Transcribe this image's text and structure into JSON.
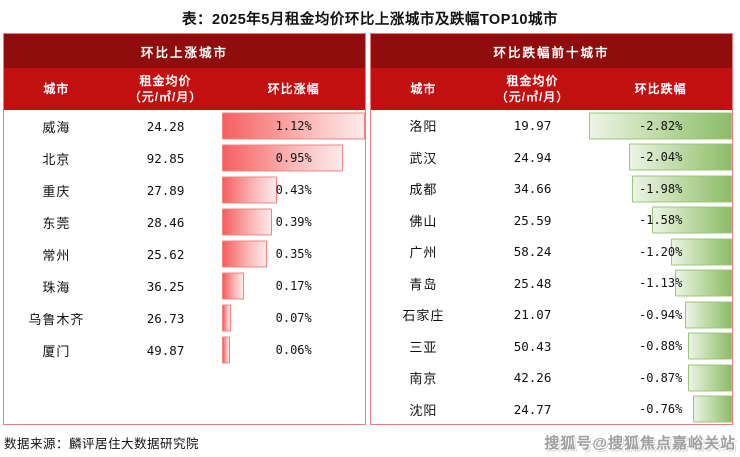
{
  "title": "表：2025年5月租金均价环比上涨城市及跌幅TOP10城市",
  "left_table": {
    "panel_title": "环比上涨城市",
    "columns": {
      "city": "城市",
      "price_line1": "租金均价",
      "price_line2": "（元/㎡/月）",
      "change": "环比涨幅"
    },
    "max_abs_value": 1.12,
    "rows": [
      {
        "city": "威海",
        "price": "24.28",
        "change": "1.12%",
        "value": 1.12
      },
      {
        "city": "北京",
        "price": "92.85",
        "change": "0.95%",
        "value": 0.95
      },
      {
        "city": "重庆",
        "price": "27.89",
        "change": "0.43%",
        "value": 0.43
      },
      {
        "city": "东莞",
        "price": "28.46",
        "change": "0.39%",
        "value": 0.39
      },
      {
        "city": "常州",
        "price": "25.62",
        "change": "0.35%",
        "value": 0.35
      },
      {
        "city": "珠海",
        "price": "36.25",
        "change": "0.17%",
        "value": 0.17
      },
      {
        "city": "乌鲁木齐",
        "price": "26.73",
        "change": "0.07%",
        "value": 0.07
      },
      {
        "city": "厦门",
        "price": "49.87",
        "change": "0.06%",
        "value": 0.06
      }
    ]
  },
  "right_table": {
    "panel_title": "环比跌幅前十城市",
    "columns": {
      "city": "城市",
      "price_line1": "租金均价",
      "price_line2": "（元/㎡/月）",
      "change": "环比跌幅"
    },
    "max_abs_value": 2.82,
    "rows": [
      {
        "city": "洛阳",
        "price": "19.97",
        "change": "-2.82%",
        "value": -2.82
      },
      {
        "city": "武汉",
        "price": "24.94",
        "change": "-2.04%",
        "value": -2.04
      },
      {
        "city": "成都",
        "price": "34.66",
        "change": "-1.98%",
        "value": -1.98
      },
      {
        "city": "佛山",
        "price": "25.59",
        "change": "-1.58%",
        "value": -1.58
      },
      {
        "city": "广州",
        "price": "58.24",
        "change": "-1.20%",
        "value": -1.2
      },
      {
        "city": "青岛",
        "price": "25.48",
        "change": "-1.13%",
        "value": -1.13
      },
      {
        "city": "石家庄",
        "price": "21.07",
        "change": "-0.94%",
        "value": -0.94
      },
      {
        "city": "三亚",
        "price": "50.43",
        "change": "-0.88%",
        "value": -0.88
      },
      {
        "city": "南京",
        "price": "42.26",
        "change": "-0.87%",
        "value": -0.87
      },
      {
        "city": "沈阳",
        "price": "24.77",
        "change": "-0.76%",
        "value": -0.76
      }
    ]
  },
  "footer": {
    "source": "数据来源：麟评居住大数据研究院",
    "watermark": "搜狐号@搜狐焦点嘉峪关站"
  },
  "colors": {
    "panel_header_bg": "#8f0d0d",
    "column_header_bg": "#c21010",
    "panel_border": "#e87d7d",
    "rise_bar_start": "#f55f5f",
    "rise_bar_end": "#fdeaea",
    "rise_bar_border": "#f08484",
    "fall_bar_start": "#ecf4e5",
    "fall_bar_end": "#8cbc68",
    "fall_bar_border": "#9cc47c"
  },
  "chart_data": [
    {
      "type": "bar",
      "title": "环比上涨城市",
      "categories": [
        "威海",
        "北京",
        "重庆",
        "东莞",
        "常州",
        "珠海",
        "乌鲁木齐",
        "厦门"
      ],
      "values": [
        1.12,
        0.95,
        0.43,
        0.39,
        0.35,
        0.17,
        0.07,
        0.06
      ],
      "value_unit": "%",
      "extra_series": {
        "name": "租金均价（元/㎡/月）",
        "values": [
          24.28,
          92.85,
          27.89,
          28.46,
          25.62,
          36.25,
          26.73,
          49.87
        ]
      },
      "xlabel": "",
      "ylabel": "环比涨幅",
      "xlim": [
        0,
        1.12
      ],
      "grid": false,
      "legend": "none"
    },
    {
      "type": "bar",
      "title": "环比跌幅前十城市",
      "categories": [
        "洛阳",
        "武汉",
        "成都",
        "佛山",
        "广州",
        "青岛",
        "石家庄",
        "三亚",
        "南京",
        "沈阳"
      ],
      "values": [
        -2.82,
        -2.04,
        -1.98,
        -1.58,
        -1.2,
        -1.13,
        -0.94,
        -0.88,
        -0.87,
        -0.76
      ],
      "value_unit": "%",
      "extra_series": {
        "name": "租金均价（元/㎡/月）",
        "values": [
          19.97,
          24.94,
          34.66,
          25.59,
          58.24,
          25.48,
          21.07,
          50.43,
          42.26,
          24.77
        ]
      },
      "xlabel": "",
      "ylabel": "环比跌幅",
      "xlim": [
        -2.82,
        0
      ],
      "grid": false,
      "legend": "none"
    }
  ]
}
